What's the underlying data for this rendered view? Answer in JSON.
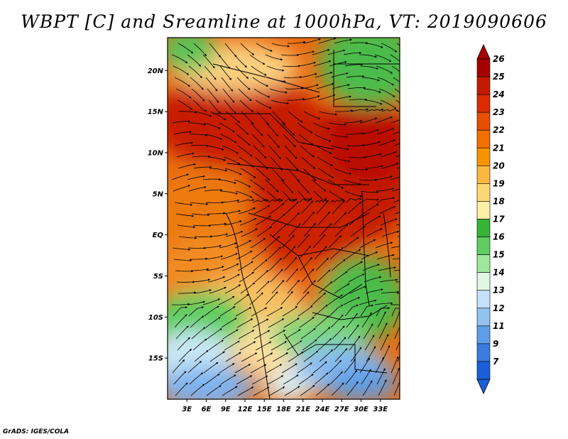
{
  "title": "WBPT [C] and Sreamline at 1000hPa, VT: 2019090606",
  "credit": "GrADS: IGES/COLA",
  "map": {
    "lon_range": [
      0,
      36
    ],
    "lat_range": [
      -20,
      24
    ],
    "lon_ticks": [
      "3E",
      "6E",
      "9E",
      "12E",
      "15E",
      "18E",
      "21E",
      "24E",
      "27E",
      "30E",
      "33E"
    ],
    "lat_ticks": [
      "20N",
      "15N",
      "10N",
      "5N",
      "EQ",
      "5S",
      "10S",
      "15S"
    ]
  },
  "colorbar": {
    "labels": [
      "26",
      "25",
      "24",
      "23",
      "22",
      "21",
      "20",
      "19",
      "18",
      "17",
      "16",
      "15",
      "14",
      "13",
      "12",
      "11",
      "9",
      "7"
    ],
    "colors": [
      "#a50000",
      "#c41a00",
      "#dc2c00",
      "#e84e00",
      "#f07000",
      "#f59400",
      "#f8b840",
      "#fbd875",
      "#fdeea8",
      "#36b436",
      "#5fcd5f",
      "#9fe79f",
      "#e2f7e2",
      "#c5e0fa",
      "#92c3f0",
      "#5e9ee6",
      "#3a7dde",
      "#1a5fd8"
    ]
  },
  "chart_data": {
    "type": "heatmap",
    "title": "WBPT [C] and Sreamline at 1000hPa, VT: 2019090606",
    "variable": "Wet-bulb potential temperature (WBPT) [C] with 1000hPa streamlines",
    "valid_time": "2019090606",
    "x_range": [
      0,
      36
    ],
    "y_range": [
      -20,
      24
    ],
    "colorbar_levels": [
      7,
      9,
      11,
      12,
      13,
      14,
      15,
      16,
      17,
      18,
      19,
      20,
      21,
      22,
      23,
      24,
      25,
      26
    ]
  }
}
